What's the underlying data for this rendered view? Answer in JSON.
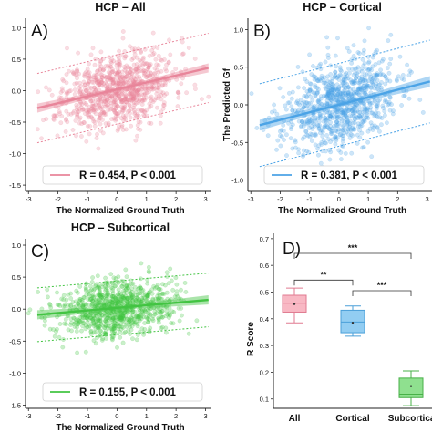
{
  "chart_data": [
    {
      "type": "scatter",
      "panel_label": "A)",
      "title": "HCP – All",
      "xlabel": "The Normalized Ground Truth",
      "ylabel": "",
      "xlim": [
        -3.1,
        3.2
      ],
      "ylim": [
        -1.6,
        1.15
      ],
      "x_ticks": [
        "-3",
        "-2",
        "-1",
        "0",
        "1",
        "2",
        "3"
      ],
      "y_ticks": [
        "1.0",
        "0.5",
        "0.0",
        "-0.5",
        "-1.0",
        "-1.5"
      ],
      "fit_line": {
        "intercept": 0.02,
        "slope": 0.11
      },
      "prediction_band_offset": 0.55,
      "legend": {
        "text": "R = 0.454,   P < 0.001",
        "placement": "bottom-right"
      },
      "color": "#e8859a"
    },
    {
      "type": "scatter",
      "panel_label": "B)",
      "title": "HCP – Cortical",
      "xlabel": "The Normalized Ground Truth",
      "ylabel": "The Predicted Gf",
      "xlim": [
        -3.1,
        3.2
      ],
      "ylim": [
        -1.15,
        1.15
      ],
      "x_ticks": [
        "-3",
        "-2",
        "-1",
        "0",
        "1",
        "2",
        "3"
      ],
      "y_ticks": [
        "1.0",
        "0.5",
        "0.0",
        "-0.5",
        "-1.0"
      ],
      "fit_line": {
        "intercept": 0.0,
        "slope": 0.1
      },
      "prediction_band_offset": 0.55,
      "legend": {
        "text": "R = 0.381,   P < 0.001",
        "placement": "bottom-right"
      },
      "color": "#4ba3e6"
    },
    {
      "type": "scatter",
      "panel_label": "C)",
      "title": "HCP – Subcortical",
      "xlabel": "The Normalized Ground Truth",
      "ylabel": "",
      "xlim": [
        -3.1,
        3.2
      ],
      "ylim": [
        -1.55,
        1.1
      ],
      "x_ticks": [
        "-3",
        "-2",
        "-1",
        "0",
        "1",
        "2",
        "3"
      ],
      "y_ticks": [
        "1.0",
        "0.5",
        "0.0",
        "-0.5",
        "-1.0",
        "-1.5"
      ],
      "fit_line": {
        "intercept": 0.02,
        "slope": 0.04
      },
      "prediction_band_offset": 0.42,
      "legend": {
        "text": "R = 0.155,   P < 0.001",
        "placement": "bottom-right"
      },
      "color": "#42c442"
    },
    {
      "type": "box",
      "panel_label": "D)",
      "xlabel": "",
      "ylabel": "R Score",
      "ylim": [
        0.065,
        0.72
      ],
      "y_ticks": [
        "0.7",
        "0.6",
        "0.5",
        "0.4",
        "0.3",
        "0.2",
        "0.1"
      ],
      "categories": [
        "All",
        "Cortical",
        "Subcortical"
      ],
      "boxes": [
        {
          "name": "All",
          "min": 0.385,
          "q1": 0.425,
          "median": 0.458,
          "q3": 0.488,
          "max": 0.515,
          "mean": 0.455,
          "color": "#f8b8c4",
          "edge": "#e07a90"
        },
        {
          "name": "Cortical",
          "min": 0.335,
          "q1": 0.348,
          "median": 0.388,
          "q3": 0.432,
          "max": 0.448,
          "mean": 0.385,
          "color": "#92cdf2",
          "edge": "#4a9fd8"
        },
        {
          "name": "Subcortical",
          "min": 0.075,
          "q1": 0.105,
          "median": 0.118,
          "q3": 0.178,
          "max": 0.205,
          "mean": 0.148,
          "color": "#8fe08f",
          "edge": "#48b048"
        }
      ],
      "significance": [
        {
          "from": "All",
          "to": "Cortical",
          "label": "**"
        },
        {
          "from": "Cortical",
          "to": "Subcortical",
          "label": "***"
        },
        {
          "from": "All",
          "to": "Subcortical",
          "label": "***"
        }
      ]
    }
  ]
}
